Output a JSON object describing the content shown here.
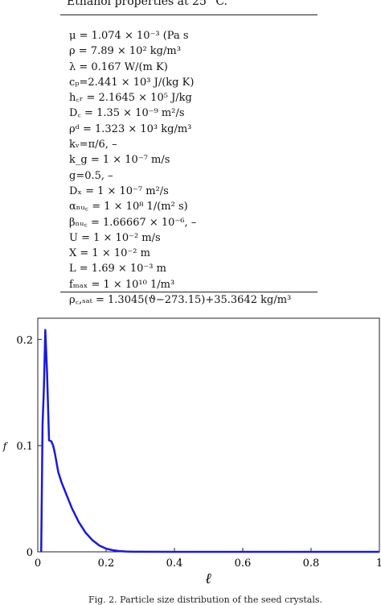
{
  "table": {
    "caption": "Ethanol properties at 25 °C.",
    "rows": [
      "μ = 1.074 × 10⁻³ (Pa s",
      "ρ = 7.89 × 10² kg/m³",
      "λ = 0.167 W/(m K)",
      "cₚ=2.441 × 10³ J/(kg K)",
      "h꜀ᵣ = 2.1645 × 10⁵ J/kg",
      "D꜀ = 1.35 × 10⁻⁹ m²/s",
      "ρᵈ = 1.323 × 10³ kg/m³",
      "kᵥ=π/6, –",
      "k_g = 1 × 10⁻⁷ m/s",
      "g=0.5, –",
      "Dₓ = 1 × 10⁻⁷ m²/s",
      "αₙᵤ꜀ = 1 × 10⁸ 1/(m² s)",
      "βₙᵤ꜀ = 1.66667 × 10⁻⁶, –",
      "U = 1 × 10⁻² m/s",
      "X = 1 × 10⁻² m",
      "L = 1.69 × 10⁻³ m",
      "fₘₐₓ = 1 × 10¹⁰ 1/m³",
      "ρ꜀,ₛₐₜ = 1.3045(ϑ−273.15)+35.3642 kg/m³"
    ]
  },
  "figure": {
    "caption": "Fig. 2. Particle size distribution of the seed crystals."
  },
  "chart_data": {
    "type": "line",
    "xlabel": "ℓ",
    "ylabel": "f",
    "xlim": [
      0,
      1
    ],
    "ylim": [
      0,
      0.22
    ],
    "x_ticks": [
      "0",
      "0.2",
      "0.4",
      "0.6",
      "0.8",
      "1"
    ],
    "y_ticks": [
      "0",
      "0.1",
      "0.2"
    ],
    "line_color": "#1a1adb",
    "series": [
      {
        "x": [
          0.01,
          0.012,
          0.014,
          0.018,
          0.022,
          0.027,
          0.033,
          0.04,
          0.045,
          0.05,
          0.06,
          0.07,
          0.08,
          0.1,
          0.12,
          0.14,
          0.16,
          0.18,
          0.2,
          0.22,
          0.24,
          0.26,
          0.28,
          0.3,
          0.4,
          0.5,
          0.6,
          0.7,
          0.8,
          0.9,
          1.0
        ],
        "y": [
          0,
          0.06,
          0.12,
          0.155,
          0.209,
          0.17,
          0.105,
          0.104,
          0.1,
          0.093,
          0.075,
          0.065,
          0.057,
          0.041,
          0.028,
          0.018,
          0.011,
          0.006,
          0.003,
          0.0015,
          0.0007,
          0.0003,
          0.0001,
          5e-05,
          0,
          0,
          0,
          0,
          0,
          0,
          0
        ]
      }
    ]
  }
}
